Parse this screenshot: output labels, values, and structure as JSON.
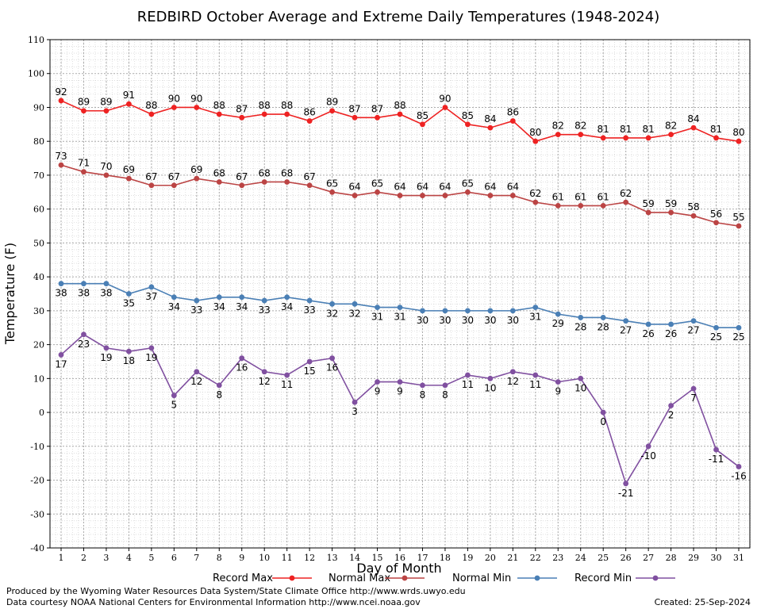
{
  "chart_data": {
    "type": "line",
    "title": "REDBIRD October Average and Extreme Daily Temperatures (1948-2024)",
    "xlabel": "Day of Month",
    "ylabel": "Temperature (F)",
    "ylim": [
      -40,
      110
    ],
    "ytick_step": 10,
    "grid": true,
    "legend_position": "bottom",
    "x": [
      1,
      2,
      3,
      4,
      5,
      6,
      7,
      8,
      9,
      10,
      11,
      12,
      13,
      14,
      15,
      16,
      17,
      18,
      19,
      20,
      21,
      22,
      23,
      24,
      25,
      26,
      27,
      28,
      29,
      30,
      31
    ],
    "series": [
      {
        "name": "Record Max",
        "color": "#ee2222",
        "label_position": "above",
        "values": [
          92,
          89,
          89,
          91,
          88,
          90,
          90,
          88,
          87,
          88,
          88,
          86,
          89,
          87,
          87,
          88,
          85,
          90,
          85,
          84,
          86,
          80,
          82,
          82,
          81,
          81,
          81,
          82,
          84,
          81,
          80
        ]
      },
      {
        "name": "Normal Max",
        "color": "#bb4444",
        "label_position": "above",
        "values": [
          73,
          71,
          70,
          69,
          67,
          67,
          69,
          68,
          67,
          68,
          68,
          67,
          65,
          64,
          65,
          64,
          64,
          64,
          65,
          64,
          64,
          62,
          61,
          61,
          61,
          62,
          59,
          59,
          58,
          56,
          55
        ]
      },
      {
        "name": "Normal Min",
        "color": "#4a7fb5",
        "label_position": "below",
        "values": [
          38,
          38,
          38,
          35,
          37,
          34,
          33,
          34,
          34,
          33,
          34,
          33,
          32,
          32,
          31,
          31,
          30,
          30,
          30,
          30,
          30,
          31,
          29,
          28,
          28,
          27,
          26,
          26,
          27,
          25,
          25
        ]
      },
      {
        "name": "Record Min",
        "color": "#8050a0",
        "label_position": "below",
        "values": [
          17,
          23,
          19,
          18,
          19,
          5,
          12,
          8,
          16,
          12,
          11,
          15,
          16,
          3,
          9,
          9,
          8,
          8,
          11,
          10,
          12,
          11,
          9,
          10,
          0,
          -21,
          -10,
          2,
          7,
          -11,
          -16
        ]
      }
    ]
  },
  "footer": {
    "line1": "Produced by the Wyoming Water Resources Data System/State Climate Office http://www.wrds.uwyo.edu",
    "line2": "Data courtesy NOAA National Centers for Environmental Information http://www.ncei.noaa.gov",
    "created": "Created:  25-Sep-2024"
  }
}
